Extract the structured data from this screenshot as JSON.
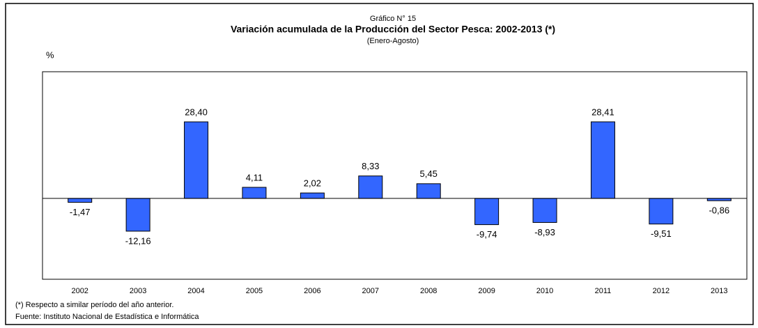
{
  "chart_data": {
    "type": "bar",
    "supertitle": "Gráfico N° 15",
    "title": "Variación  acumulada de la Producción del Sector Pesca: 2002-2013 (*)",
    "subtitle": "(Enero-Agosto)",
    "y_label": "%",
    "categories": [
      "2002",
      "2003",
      "2004",
      "2005",
      "2006",
      "2007",
      "2008",
      "2009",
      "2010",
      "2011",
      "2012",
      "2013"
    ],
    "values": [
      -1.47,
      -12.16,
      28.4,
      4.11,
      2.02,
      8.33,
      5.45,
      -9.74,
      -8.93,
      28.41,
      -9.51,
      -0.86
    ],
    "value_labels": [
      "-1,47",
      "-12,16",
      "28,40",
      "4,11",
      "2,02",
      "8,33",
      "5,45",
      "-9,74",
      "-8,93",
      "28,41",
      "-9,51",
      "-0,86"
    ],
    "color": "#3366ff",
    "ylim": [
      -30,
      47
    ],
    "footnote": "(*) Respecto a similar período del año anterior.",
    "source": "Fuente: Instituto Nacional de Estadística e Informática"
  }
}
